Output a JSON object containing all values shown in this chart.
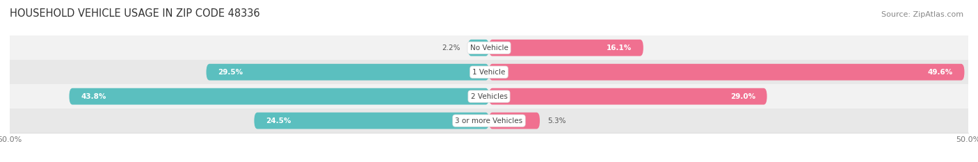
{
  "title": "HOUSEHOLD VEHICLE USAGE IN ZIP CODE 48336",
  "source": "Source: ZipAtlas.com",
  "categories": [
    "No Vehicle",
    "1 Vehicle",
    "2 Vehicles",
    "3 or more Vehicles"
  ],
  "owner_values": [
    2.2,
    29.5,
    43.8,
    24.5
  ],
  "renter_values": [
    16.1,
    49.6,
    29.0,
    5.3
  ],
  "owner_color": "#5bbfbf",
  "renter_color": "#f07090",
  "axis_limit": 50.0,
  "bar_height": 0.68,
  "title_fontsize": 10.5,
  "source_fontsize": 8,
  "tick_fontsize": 8,
  "label_fontsize": 7.5,
  "value_fontsize": 7.5,
  "legend_fontsize": 8,
  "row_bg_colors": [
    "#f2f2f2",
    "#e8e8e8",
    "#f2f2f2",
    "#e8e8e8"
  ],
  "owner_text_threshold": 8.0,
  "renter_text_threshold": 8.0
}
